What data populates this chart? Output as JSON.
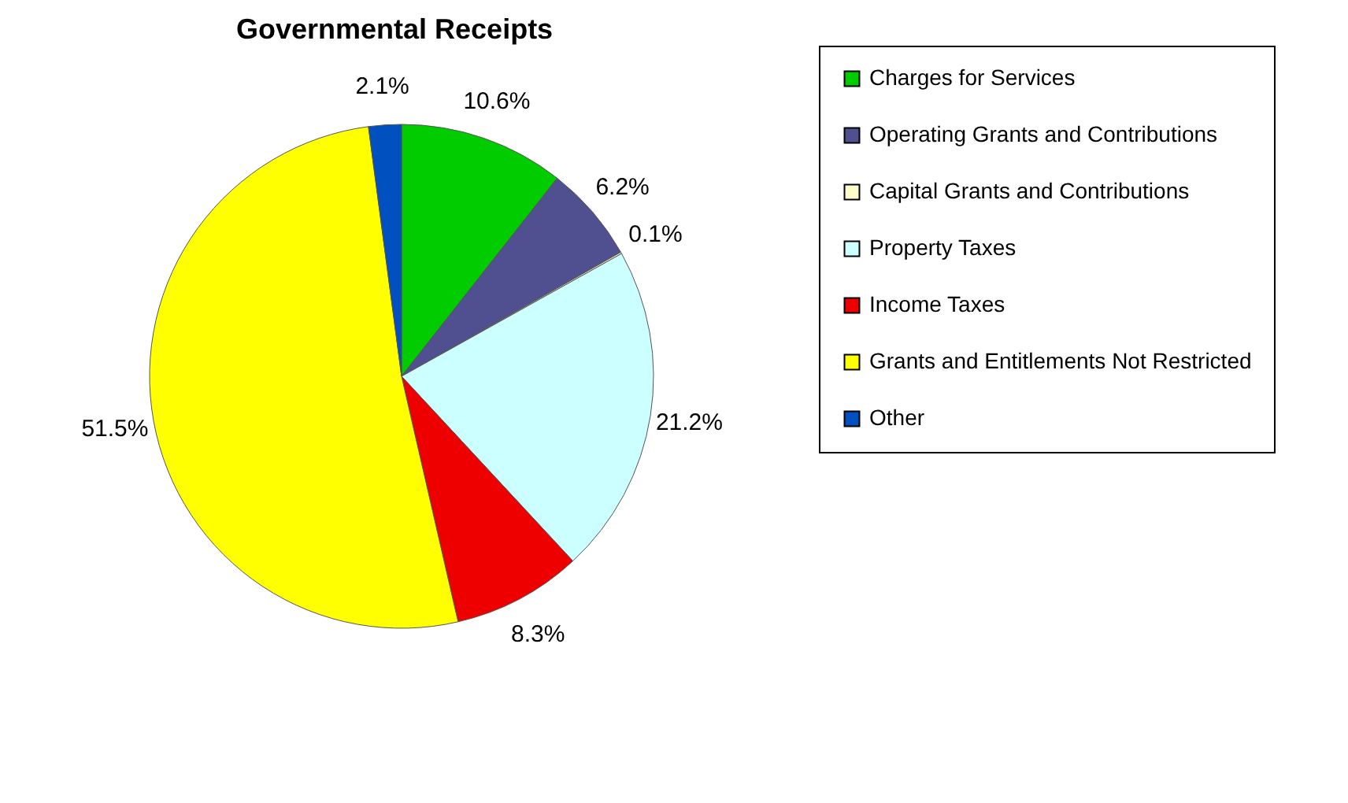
{
  "chart_data": {
    "type": "pie",
    "title": "Governmental Receipts",
    "categories": [
      "Charges for Services",
      "Operating Grants and Contributions",
      "Capital Grants and Contributions",
      "Property Taxes",
      "Income Taxes",
      "Grants and Entitlements Not Restricted",
      "Other"
    ],
    "values": [
      10.6,
      6.2,
      0.1,
      21.2,
      8.3,
      51.5,
      2.1
    ],
    "colors": [
      "#00cc00",
      "#505090",
      "#ffffcc",
      "#ccffff",
      "#ee0000",
      "#ffff00",
      "#0050c0"
    ],
    "value_labels": [
      "10.6%",
      "6.2%",
      "0.1%",
      "21.2%",
      "8.3%",
      "51.5%",
      "2.1%"
    ],
    "legend": "right"
  }
}
